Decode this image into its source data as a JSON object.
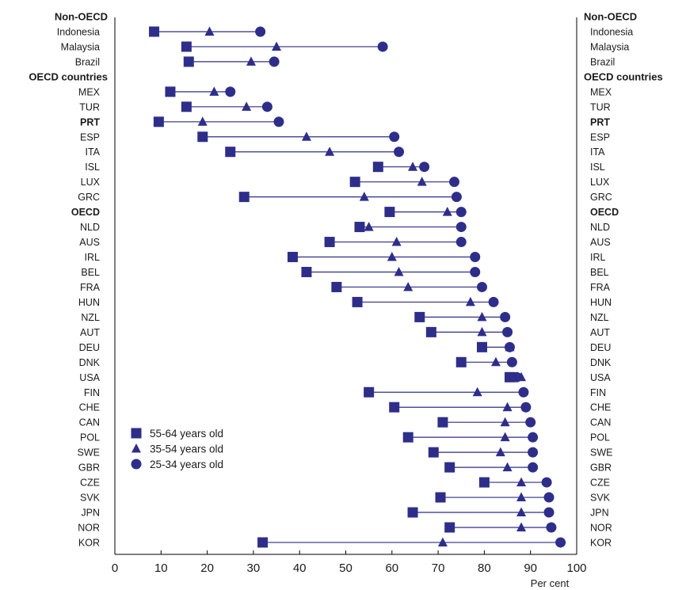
{
  "chart_data": {
    "type": "dot-range",
    "x_unit_label": "Per cent",
    "xlim": [
      0,
      100
    ],
    "x_ticks": [
      0,
      10,
      20,
      30,
      40,
      50,
      60,
      70,
      80,
      90,
      100
    ],
    "colors": {
      "series": "#2e2e8a",
      "axis": "#000000"
    },
    "series": [
      {
        "name": "55-64 years old",
        "marker": "square"
      },
      {
        "name": "35-54 years old",
        "marker": "triangle"
      },
      {
        "name": "25-34 years old",
        "marker": "circle"
      }
    ],
    "rows": [
      {
        "label": "Non-OECD",
        "kind": "group"
      },
      {
        "label": "Indonesia",
        "values": [
          8.5,
          20.5,
          31.5
        ]
      },
      {
        "label": "Malaysia",
        "values": [
          15.5,
          35,
          58
        ]
      },
      {
        "label": "Brazil",
        "values": [
          16,
          29.5,
          34.5
        ]
      },
      {
        "label": "OECD countries",
        "kind": "group"
      },
      {
        "label": "MEX",
        "values": [
          12,
          21.5,
          25
        ]
      },
      {
        "label": "TUR",
        "values": [
          15.5,
          28.5,
          33
        ]
      },
      {
        "label": "PRT",
        "values": [
          9.5,
          19,
          35.5
        ],
        "bold": true
      },
      {
        "label": "ESP",
        "values": [
          19,
          41.5,
          60.5
        ]
      },
      {
        "label": "ITA",
        "values": [
          25,
          46.5,
          61.5
        ]
      },
      {
        "label": "ISL",
        "values": [
          57,
          64.5,
          67
        ]
      },
      {
        "label": "LUX",
        "values": [
          52,
          66.5,
          73.5
        ]
      },
      {
        "label": "GRC",
        "values": [
          28,
          54,
          74
        ]
      },
      {
        "label": "OECD",
        "values": [
          59.5,
          72,
          75
        ],
        "bold": true
      },
      {
        "label": "NLD",
        "values": [
          53,
          55,
          75
        ]
      },
      {
        "label": "AUS",
        "values": [
          46.5,
          61,
          75
        ]
      },
      {
        "label": "IRL",
        "values": [
          38.5,
          60,
          78
        ]
      },
      {
        "label": "BEL",
        "values": [
          41.5,
          61.5,
          78
        ]
      },
      {
        "label": "FRA",
        "values": [
          48,
          63.5,
          79.5
        ]
      },
      {
        "label": "HUN",
        "values": [
          52.5,
          77,
          82
        ]
      },
      {
        "label": "NZL",
        "values": [
          66,
          79.5,
          84.5
        ]
      },
      {
        "label": "AUT",
        "values": [
          68.5,
          79.5,
          85
        ]
      },
      {
        "label": "DEU",
        "values": [
          79.5,
          85.5,
          85.5
        ]
      },
      {
        "label": "DNK",
        "values": [
          75,
          82.5,
          86
        ]
      },
      {
        "label": "USA",
        "values": [
          85.5,
          88,
          87
        ]
      },
      {
        "label": "FIN",
        "values": [
          55,
          78.5,
          88.5
        ]
      },
      {
        "label": "CHE",
        "values": [
          60.5,
          85,
          89
        ]
      },
      {
        "label": "CAN",
        "values": [
          71,
          84.5,
          90
        ]
      },
      {
        "label": "POL",
        "values": [
          63.5,
          84.5,
          90.5
        ]
      },
      {
        "label": "SWE",
        "values": [
          69,
          83.5,
          90.5
        ]
      },
      {
        "label": "GBR",
        "values": [
          72.5,
          85,
          90.5
        ]
      },
      {
        "label": "CZE",
        "values": [
          80,
          88,
          93.5
        ]
      },
      {
        "label": "SVK",
        "values": [
          70.5,
          88,
          94
        ]
      },
      {
        "label": "JPN",
        "values": [
          64.5,
          88,
          94
        ]
      },
      {
        "label": "NOR",
        "values": [
          72.5,
          88,
          94.5
        ]
      },
      {
        "label": "KOR",
        "values": [
          32,
          71,
          96.5
        ]
      }
    ]
  }
}
